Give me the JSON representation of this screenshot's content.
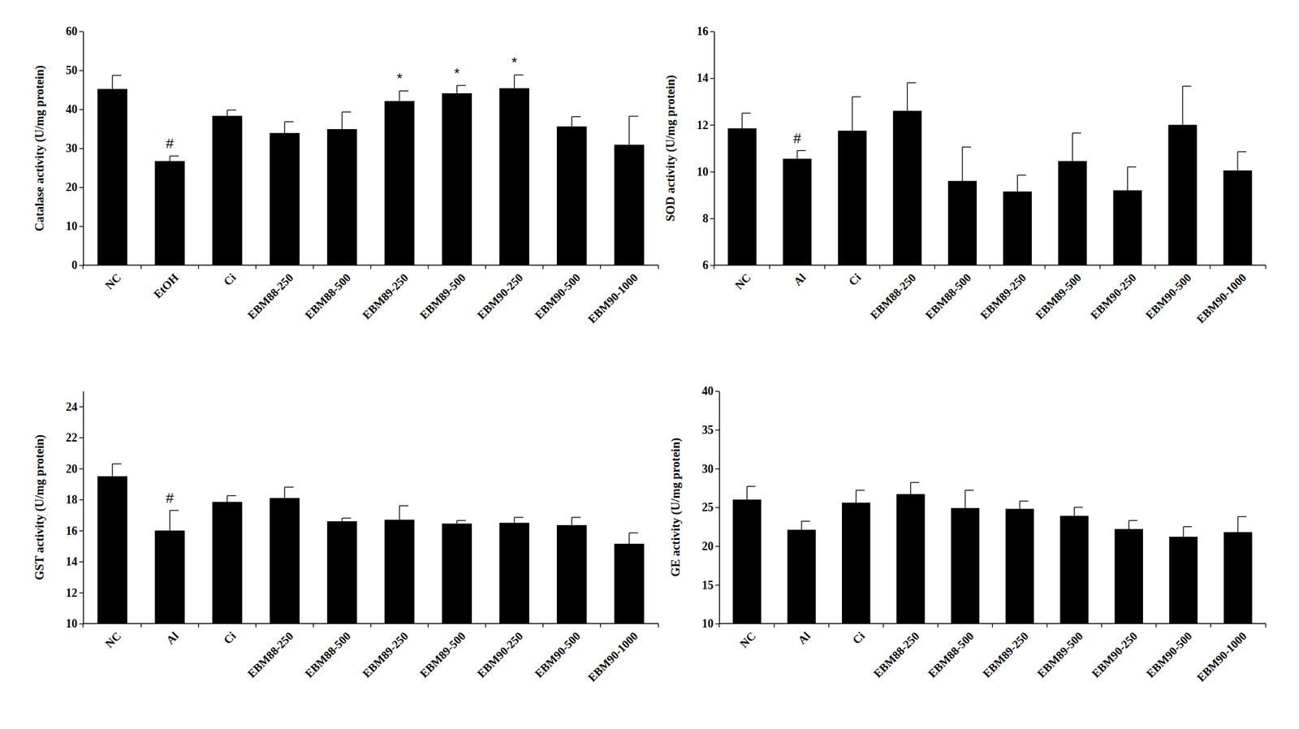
{
  "chart_data": [
    {
      "type": "bar",
      "y_label": "Catalase activity (U/mg protein)",
      "color": "#000000",
      "categories": [
        "NC",
        "EtOH",
        "Ci",
        "EBM88-250",
        "EBM88-500",
        "EBM89-250",
        "EBM89-500",
        "EBM90-250",
        "EBM90-500",
        "EBM90-1000"
      ],
      "values": [
        45.2,
        26.7,
        38.3,
        33.9,
        34.9,
        42.1,
        44.1,
        45.4,
        35.6,
        30.9
      ],
      "errors": [
        3.5,
        1.3,
        1.5,
        2.9,
        4.4,
        2.6,
        2.0,
        3.4,
        2.5,
        7.3
      ],
      "annotations": [
        null,
        "#",
        null,
        null,
        null,
        "*",
        "*",
        "*",
        null,
        null
      ],
      "ylim": [
        0,
        60
      ],
      "yticks": [
        0,
        10,
        20,
        30,
        40,
        50,
        60
      ],
      "grid": false
    },
    {
      "type": "bar",
      "y_label": "SOD activity (U/mg protein)",
      "color": "#000000",
      "categories": [
        "NC",
        "Al",
        "Ci",
        "EBM88-250",
        "EBM88-500",
        "EBM89-250",
        "EBM89-500",
        "EBM90-250",
        "EBM90-500",
        "EBM90-1000"
      ],
      "values": [
        11.85,
        10.55,
        11.75,
        12.6,
        9.6,
        9.15,
        10.45,
        9.2,
        12.0,
        10.05
      ],
      "errors": [
        0.65,
        0.35,
        1.45,
        1.2,
        1.45,
        0.7,
        1.2,
        1.0,
        1.65,
        0.8
      ],
      "annotations": [
        null,
        "#",
        null,
        null,
        null,
        null,
        null,
        null,
        null,
        null
      ],
      "ylim": [
        6,
        16
      ],
      "yticks": [
        6,
        8,
        10,
        12,
        14,
        16
      ],
      "grid": false
    },
    {
      "type": "bar",
      "y_label": "GST activity (U/mg protein)",
      "color": "#000000",
      "categories": [
        "NC",
        "Al",
        "Ci",
        "EBM88-250",
        "EBM88-500",
        "EBM89-250",
        "EBM89-500",
        "EBM90-250",
        "EBM90-500",
        "EBM90-1000"
      ],
      "values": [
        19.5,
        16.0,
        17.85,
        18.1,
        16.6,
        16.7,
        16.45,
        16.5,
        16.35,
        15.15
      ],
      "errors": [
        0.8,
        1.3,
        0.4,
        0.7,
        0.2,
        0.9,
        0.2,
        0.35,
        0.5,
        0.7
      ],
      "annotations": [
        null,
        "#",
        null,
        null,
        null,
        null,
        null,
        null,
        null,
        null
      ],
      "ylim": [
        10,
        25
      ],
      "yticks": [
        10,
        12,
        14,
        16,
        18,
        20,
        22,
        24
      ],
      "grid": false
    },
    {
      "type": "bar",
      "y_label": "GE activity (U/mg protein)",
      "color": "#000000",
      "categories": [
        "NC",
        "Al",
        "Ci",
        "EBM88-250",
        "EBM88-500",
        "EBM89-250",
        "EBM89-500",
        "EBM90-250",
        "EBM90-500",
        "EBM90-1000"
      ],
      "values": [
        26.0,
        22.1,
        25.6,
        26.7,
        24.9,
        24.8,
        23.9,
        22.2,
        21.2,
        21.8
      ],
      "errors": [
        1.7,
        1.1,
        1.6,
        1.5,
        2.3,
        1.0,
        1.1,
        1.1,
        1.3,
        2.0
      ],
      "ylim": [
        10,
        40
      ],
      "yticks": [
        10,
        15,
        20,
        25,
        30,
        35,
        40
      ],
      "grid": false
    }
  ]
}
